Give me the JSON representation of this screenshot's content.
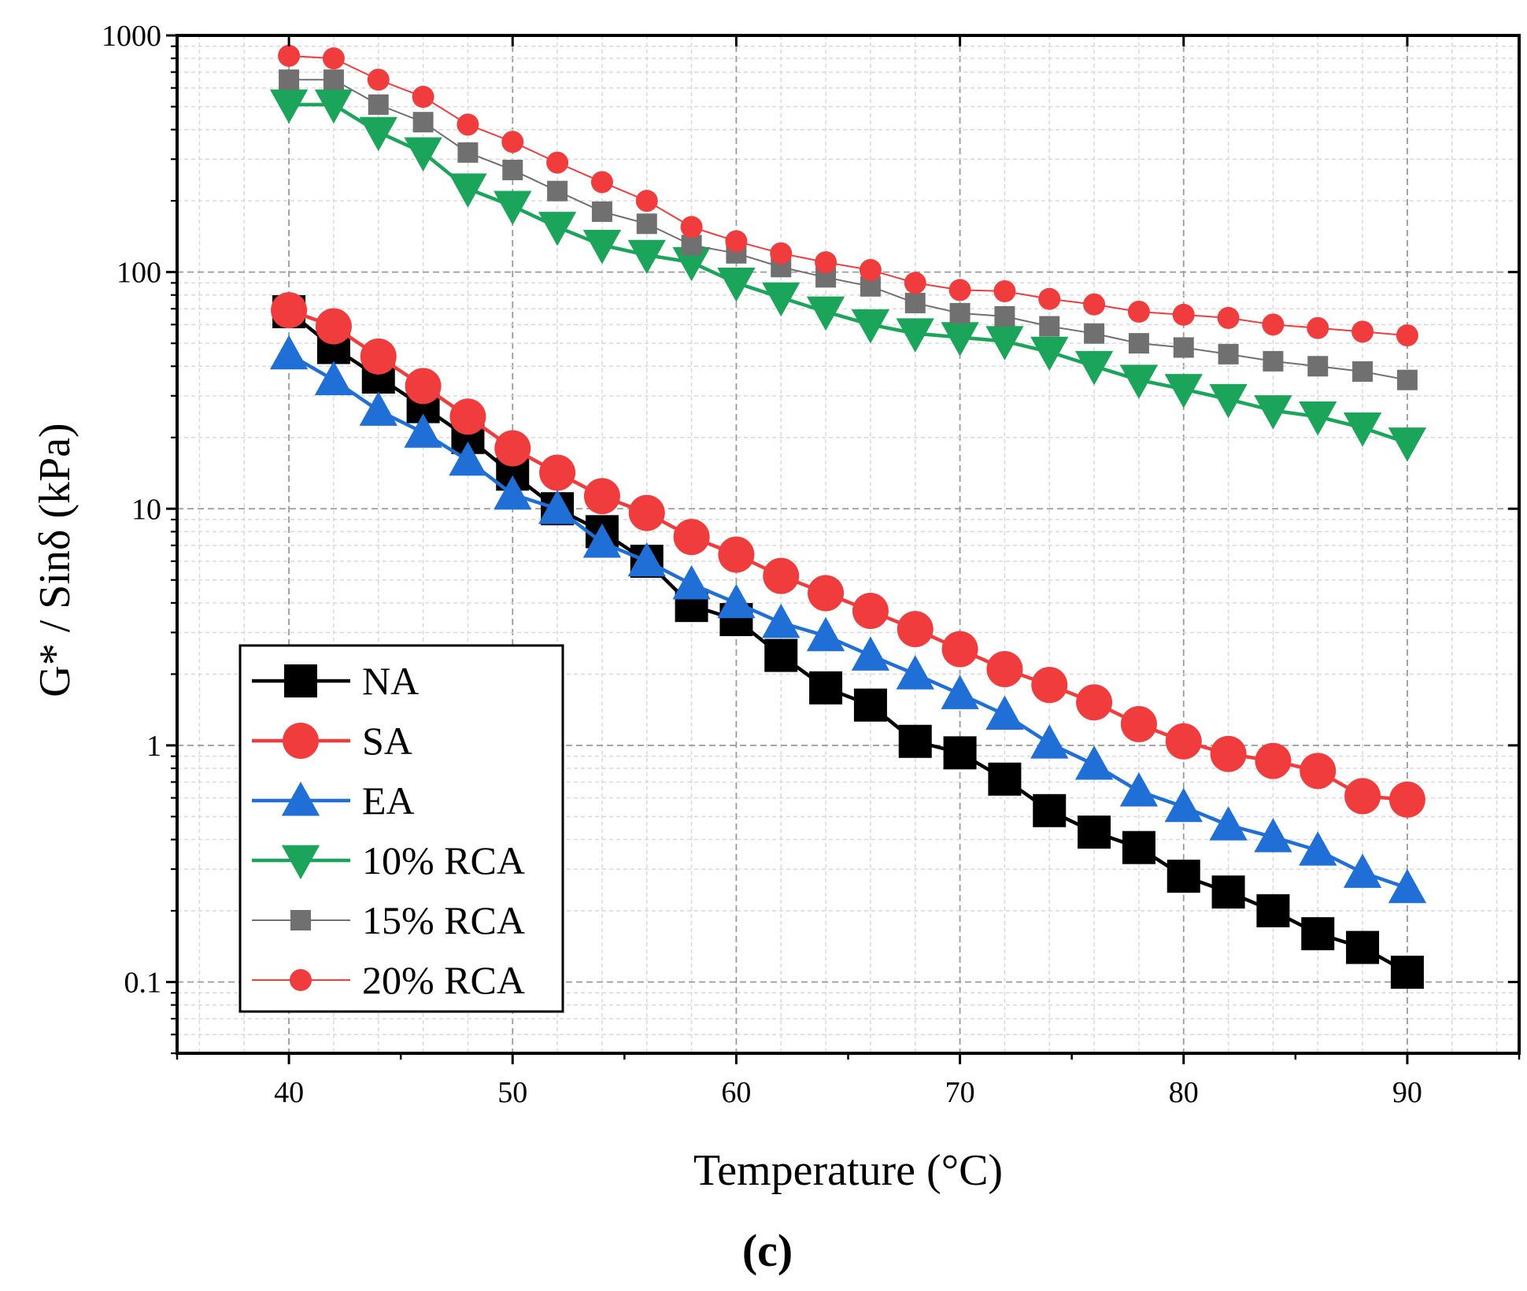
{
  "chart_data": {
    "type": "line",
    "panel_label": "(c)",
    "xlabel": "Temperature (°C)",
    "ylabel": "G* / Sinδ (kPa)",
    "xlim": [
      35,
      95
    ],
    "ylim": [
      0.05,
      1000
    ],
    "yscale": "log",
    "grid": true,
    "legend_position": "lower-left",
    "x_ticks": [
      40,
      50,
      60,
      70,
      80,
      90
    ],
    "x_tick_labels": [
      "40",
      "50",
      "60",
      "70",
      "80",
      "90"
    ],
    "y_ticks": [
      0.1,
      1,
      10,
      100,
      1000
    ],
    "y_tick_labels": [
      "0.1",
      "1",
      "10",
      "100",
      "1000"
    ],
    "x": [
      40,
      42,
      44,
      46,
      48,
      50,
      52,
      54,
      56,
      58,
      60,
      62,
      64,
      66,
      68,
      70,
      72,
      74,
      76,
      78,
      80,
      82,
      84,
      86,
      88,
      90
    ],
    "series": [
      {
        "name": "NA",
        "color": "#000000",
        "marker": "square",
        "size": "large",
        "values": [
          68,
          48,
          36,
          27,
          20,
          14,
          10,
          8,
          6,
          3.9,
          3.4,
          2.4,
          1.75,
          1.48,
          1.04,
          0.93,
          0.72,
          0.53,
          0.43,
          0.37,
          0.28,
          0.24,
          0.2,
          0.16,
          0.14,
          0.11
        ]
      },
      {
        "name": "SA",
        "color": "#f03c3c",
        "marker": "circle",
        "size": "large",
        "values": [
          69,
          59,
          44,
          33,
          24.5,
          18,
          14.2,
          11.3,
          9.6,
          7.6,
          6.4,
          5.2,
          4.4,
          3.7,
          3.1,
          2.55,
          2.1,
          1.8,
          1.52,
          1.23,
          1.04,
          0.92,
          0.86,
          0.78,
          0.61,
          0.59
        ]
      },
      {
        "name": "EA",
        "color": "#1f6fd6",
        "marker": "triangle-up",
        "size": "large",
        "values": [
          45,
          35,
          26,
          21,
          16,
          11.5,
          10,
          7.2,
          6,
          4.8,
          4,
          3.3,
          2.9,
          2.4,
          2,
          1.65,
          1.35,
          1.02,
          0.83,
          0.64,
          0.55,
          0.46,
          0.41,
          0.36,
          0.29,
          0.25
        ]
      },
      {
        "name": "10% RCA",
        "color": "#1aa55a",
        "marker": "triangle-down",
        "size": "large",
        "values": [
          510,
          510,
          390,
          320,
          225,
          190,
          155,
          130,
          118,
          110,
          90,
          78,
          68,
          60,
          55,
          53,
          51,
          46,
          40,
          35,
          32,
          29,
          26,
          24.5,
          22,
          19
        ]
      },
      {
        "name": "15% RCA",
        "color": "#707070",
        "marker": "square",
        "size": "small",
        "values": [
          650,
          650,
          510,
          430,
          320,
          270,
          220,
          180,
          160,
          130,
          120,
          105,
          95,
          87,
          74,
          67,
          65,
          59,
          55,
          50,
          48,
          45,
          42,
          40,
          38,
          35
        ]
      },
      {
        "name": "20% RCA",
        "color": "#f03c3c",
        "marker": "circle",
        "size": "small",
        "values": [
          820,
          800,
          650,
          550,
          420,
          355,
          290,
          240,
          200,
          155,
          135,
          120,
          110,
          102,
          90,
          84,
          83,
          77,
          73,
          68,
          66,
          64,
          60,
          58,
          56,
          54
        ]
      }
    ]
  }
}
